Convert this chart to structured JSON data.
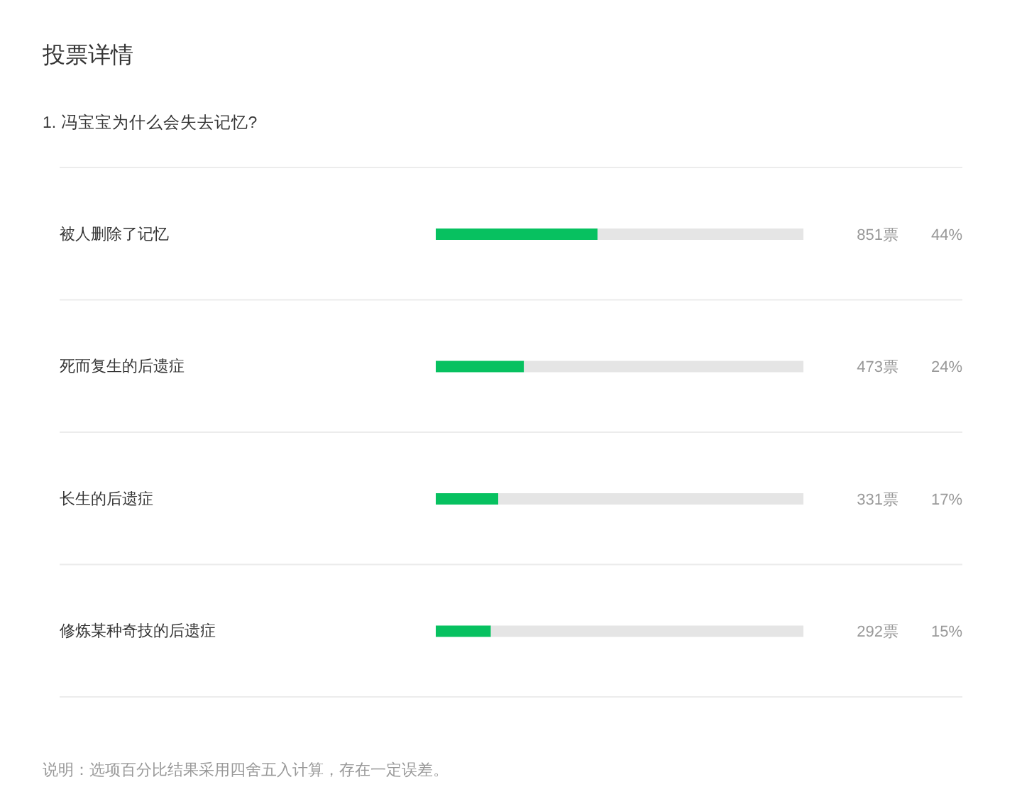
{
  "chart_data": {
    "type": "bar",
    "orientation": "horizontal",
    "stacked": true,
    "title": "投票详情",
    "subtitle": "1. 冯宝宝为什么会失去记忆?",
    "categories": [
      "被人删除了记忆",
      "死而复生的后遗症",
      "长生的后遗症",
      "修炼某种奇技的后遗症"
    ],
    "series": [
      {
        "color": "#07c160",
        "values": [
          44,
          24,
          17,
          15
        ],
        "value_labels": [
          "44%",
          "24%",
          "17%",
          "15%"
        ]
      },
      {
        "color": "#e5e5e5",
        "values": [
          56,
          76,
          83,
          85
        ]
      }
    ],
    "xlim": [
      0,
      100
    ],
    "grid": "y",
    "tick_labels": "y",
    "annotations": [
      "851票",
      "473票",
      "331票",
      "292票",
      "说明：选项百分比结果采用四舍五入计算，存在一定误差。"
    ]
  }
}
